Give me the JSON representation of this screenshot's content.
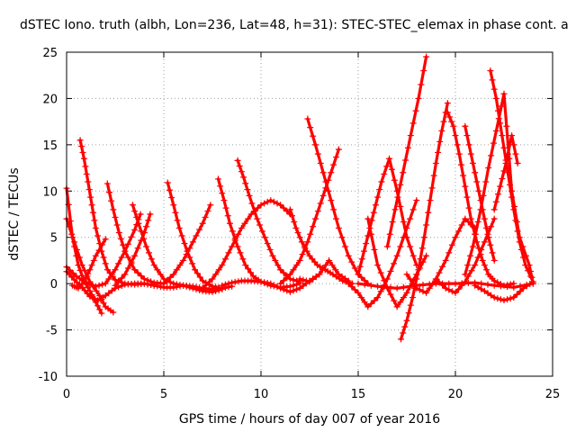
{
  "chart_data": {
    "type": "scatter",
    "title": "dSTEC Iono. truth (albh, Lon=236, Lat=48, h=31): STEC-STEC_elemax in phase cont. a",
    "xlabel": "GPS time / hours of day 007 of year 2016",
    "ylabel": "dSTEC  / TECUs",
    "xlim": [
      0,
      25
    ],
    "ylim": [
      -10,
      25
    ],
    "xticks": [
      "0",
      "5",
      "10",
      "15",
      "20",
      "25"
    ],
    "yticks": [
      "-10",
      "-5",
      "0",
      "5",
      "10",
      "15",
      "20",
      "25"
    ],
    "grid": true,
    "marker": "+",
    "color": "#ff0000",
    "series": [
      {
        "x": [
          0.0,
          0.3,
          0.6,
          0.9,
          1.2,
          1.5,
          1.8
        ],
        "y": [
          10.3,
          5.0,
          2.0,
          0.3,
          -0.8,
          -2.0,
          -3.2
        ]
      },
      {
        "x": [
          0.0,
          0.4,
          0.8,
          1.2,
          1.7,
          2.0,
          2.4
        ],
        "y": [
          7.0,
          4.5,
          2.0,
          0.2,
          -1.3,
          -2.5,
          -3.1
        ]
      },
      {
        "x": [
          0.0,
          0.5,
          1.0,
          1.5,
          2.0,
          2.5,
          3.0,
          3.5,
          3.8
        ],
        "y": [
          1.8,
          0.8,
          0.1,
          -0.3,
          0.0,
          1.5,
          3.5,
          5.8,
          7.5
        ]
      },
      {
        "x": [
          0.0,
          0.4,
          0.8,
          1.2,
          1.6,
          2.0,
          2.5,
          3.0,
          3.5,
          4.0,
          4.5,
          5.0,
          5.5,
          6.0,
          6.5,
          7.0,
          7.5,
          7.8
        ],
        "y": [
          1.3,
          0.4,
          -0.4,
          -1.4,
          -1.8,
          -1.3,
          -0.5,
          -0.1,
          0.0,
          0.0,
          -0.2,
          -0.4,
          -0.4,
          -0.2,
          -0.3,
          -0.5,
          -0.6,
          -0.5
        ]
      },
      {
        "x": [
          0.7,
          0.9,
          1.1,
          1.3,
          1.5,
          1.8,
          2.1,
          2.5,
          3.0,
          3.5,
          4.0,
          4.5
        ],
        "y": [
          15.5,
          13.5,
          11.0,
          8.5,
          6.0,
          3.5,
          1.5,
          0.4,
          0.0,
          -0.1,
          0.0,
          -0.2
        ]
      },
      {
        "x": [
          0.3,
          0.6,
          0.9,
          1.2,
          1.5,
          2.0
        ],
        "y": [
          -0.2,
          -0.5,
          0.2,
          1.5,
          3.0,
          4.8
        ]
      },
      {
        "x": [
          2.1,
          2.4,
          2.7,
          3.0,
          3.5,
          4.0,
          4.5,
          5.0
        ],
        "y": [
          10.8,
          8.0,
          5.5,
          3.5,
          1.5,
          0.5,
          0.1,
          0.0
        ]
      },
      {
        "x": [
          3.4,
          3.7,
          4.1,
          4.5,
          5.0,
          5.5,
          6.0,
          6.5,
          7.0,
          7.5,
          8.0
        ],
        "y": [
          8.5,
          6.5,
          4.0,
          2.0,
          0.5,
          0.0,
          -0.2,
          -0.5,
          -0.8,
          -0.9,
          -0.6
        ]
      },
      {
        "x": [
          2.5,
          3.0,
          3.5,
          4.0,
          4.3
        ],
        "y": [
          -0.2,
          1.0,
          3.0,
          5.5,
          7.5
        ]
      },
      {
        "x": [
          5.2,
          5.5,
          5.8,
          6.2,
          6.6,
          7.0,
          7.5,
          8.0,
          8.5
        ],
        "y": [
          10.9,
          8.5,
          6.0,
          3.5,
          1.5,
          0.3,
          -0.3,
          -0.5,
          -0.3
        ]
      },
      {
        "x": [
          5.0,
          5.5,
          6.0,
          6.5,
          7.0,
          7.4
        ],
        "y": [
          0.0,
          1.0,
          2.5,
          4.5,
          6.5,
          8.5
        ]
      },
      {
        "x": [
          7.8,
          8.1,
          8.4,
          8.8,
          9.2,
          9.6,
          10.0,
          10.5,
          11.0,
          11.5,
          12.0
        ],
        "y": [
          11.3,
          9.0,
          6.5,
          4.0,
          2.0,
          0.8,
          0.2,
          -0.2,
          -0.4,
          -0.3,
          0.0
        ]
      },
      {
        "x": [
          8.8,
          9.1,
          9.4,
          9.8,
          10.2,
          10.6,
          11.0,
          11.5,
          12.0
        ],
        "y": [
          13.3,
          11.5,
          9.5,
          7.0,
          5.0,
          3.0,
          1.5,
          0.5,
          0.2
        ]
      },
      {
        "x": [
          7.0,
          7.5,
          8.0,
          8.5,
          9.0,
          9.5,
          10.0,
          10.5,
          11.0,
          11.5
        ],
        "y": [
          -0.5,
          0.5,
          2.0,
          4.0,
          6.0,
          7.5,
          8.5,
          9.0,
          8.5,
          7.5
        ]
      },
      {
        "x": [
          8.0,
          8.5,
          9.0,
          9.5,
          10.0,
          10.5,
          11.0,
          11.5,
          12.0,
          12.5,
          13.0
        ],
        "y": [
          -0.2,
          0.1,
          0.3,
          0.3,
          0.2,
          0.0,
          -0.5,
          -0.9,
          -0.5,
          0.3,
          1.0
        ]
      },
      {
        "x": [
          11.5,
          11.8,
          12.1,
          12.5,
          12.9,
          13.3,
          13.7,
          14.2,
          14.7
        ],
        "y": [
          8.0,
          6.0,
          4.5,
          3.0,
          2.0,
          1.5,
          1.0,
          0.3,
          0.0
        ]
      },
      {
        "x": [
          11.0,
          11.5,
          12.0,
          12.4,
          12.8,
          13.2,
          13.6,
          14.0
        ],
        "y": [
          0.0,
          1.0,
          2.5,
          4.5,
          7.0,
          9.5,
          12.0,
          14.5
        ]
      },
      {
        "x": [
          12.4,
          12.8,
          13.2,
          13.6,
          14.0,
          14.5,
          15.0,
          15.5
        ],
        "y": [
          17.8,
          15.0,
          12.0,
          9.0,
          6.0,
          3.0,
          1.0,
          0.0
        ]
      },
      {
        "x": [
          12.0,
          12.5,
          13.0,
          13.5,
          14.0,
          14.5
        ],
        "y": [
          0.5,
          0.2,
          1.0,
          2.5,
          1.0,
          0.3
        ]
      },
      {
        "x": [
          15.0,
          15.3,
          15.6,
          15.9,
          16.2,
          16.6,
          17.0,
          17.5,
          18.0
        ],
        "y": [
          1.0,
          3.5,
          6.0,
          8.5,
          11.0,
          13.5,
          10.0,
          5.0,
          2.0
        ]
      },
      {
        "x": [
          14.5,
          15.0,
          15.5,
          16.0,
          16.5,
          17.0,
          17.5,
          18.0
        ],
        "y": [
          0.0,
          -1.0,
          -2.5,
          -1.5,
          0.5,
          3.0,
          6.0,
          9.0
        ]
      },
      {
        "x": [
          15.5,
          16.0,
          16.5,
          17.0,
          17.5,
          18.0,
          18.5
        ],
        "y": [
          7.0,
          2.0,
          -0.5,
          -2.5,
          -1.0,
          1.0,
          3.0
        ]
      },
      {
        "x": [
          17.2,
          17.5,
          17.8,
          18.1,
          18.4,
          18.7,
          19.0,
          19.3,
          19.6
        ],
        "y": [
          -6.0,
          -4.0,
          -1.5,
          1.5,
          5.0,
          9.0,
          13.0,
          16.5,
          19.5
        ]
      },
      {
        "x": [
          16.5,
          16.9,
          17.3,
          17.7,
          18.1,
          18.5
        ],
        "y": [
          4.0,
          8.0,
          12.0,
          16.0,
          20.0,
          24.5
        ]
      },
      {
        "x": [
          17.5,
          18.0,
          18.5,
          19.0,
          19.5,
          20.0,
          20.5,
          21.0
        ],
        "y": [
          1.0,
          -0.5,
          -1.0,
          0.5,
          2.5,
          5.0,
          7.0,
          6.0
        ]
      },
      {
        "x": [
          19.6,
          19.9,
          20.2,
          20.5,
          20.8,
          21.1,
          21.4,
          21.7,
          22.0,
          22.5,
          23.0
        ],
        "y": [
          18.5,
          17.0,
          14.0,
          10.5,
          7.0,
          4.5,
          2.5,
          1.0,
          0.3,
          -0.2,
          0.0
        ]
      },
      {
        "x": [
          20.5,
          20.8,
          21.1,
          21.4,
          21.7,
          22.0
        ],
        "y": [
          17.0,
          14.0,
          11.0,
          8.0,
          5.0,
          2.5
        ]
      },
      {
        "x": [
          19.0,
          19.5,
          20.0,
          20.5,
          21.0,
          21.5,
          22.0
        ],
        "y": [
          0.5,
          -0.5,
          -1.0,
          0.2,
          2.0,
          4.5,
          7.0
        ]
      },
      {
        "x": [
          20.5,
          20.9,
          21.3,
          21.7,
          22.1,
          22.5,
          22.9,
          23.3,
          23.8,
          24.0
        ],
        "y": [
          1.0,
          4.0,
          8.0,
          12.5,
          16.5,
          20.5,
          10.0,
          5.0,
          2.0,
          0.0
        ]
      },
      {
        "x": [
          21.8,
          22.1,
          22.4,
          22.7,
          23.0,
          23.3,
          23.6,
          24.0
        ],
        "y": [
          23.0,
          20.0,
          16.0,
          12.0,
          8.0,
          4.5,
          2.0,
          0.2
        ]
      },
      {
        "x": [
          22.0,
          22.3,
          22.6,
          22.9,
          23.2
        ],
        "y": [
          8.0,
          10.5,
          13.0,
          16.0,
          13.0
        ]
      },
      {
        "x": [
          21.0,
          21.5,
          22.0,
          22.5,
          23.0,
          23.5,
          24.0
        ],
        "y": [
          -0.2,
          -0.8,
          -1.5,
          -1.8,
          -1.5,
          -0.5,
          0.2
        ]
      },
      {
        "x": [
          15.0,
          16.0,
          17.0,
          18.0,
          19.0,
          20.0,
          21.0,
          22.0,
          23.0,
          24.0
        ],
        "y": [
          0.0,
          -0.3,
          -0.5,
          -0.2,
          0.0,
          0.0,
          0.1,
          -0.2,
          -0.4,
          0.0
        ]
      }
    ]
  }
}
